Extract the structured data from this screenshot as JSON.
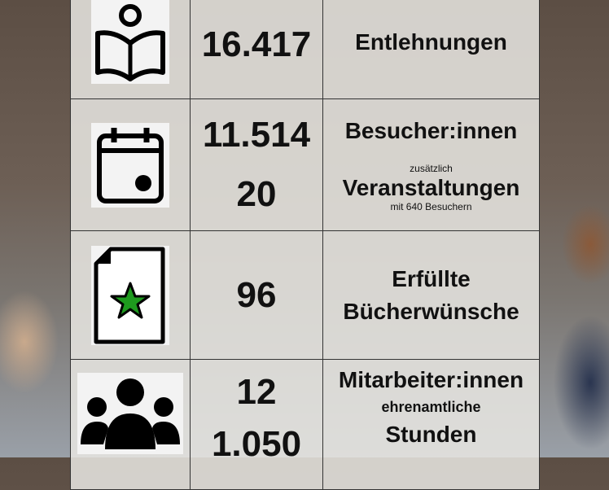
{
  "table": {
    "rows": [
      {
        "numbers": [
          "16.417"
        ],
        "label": [
          "Entlehnungen"
        ]
      },
      {
        "numbers": [
          "11.514",
          "20"
        ],
        "label": [
          "Besucher:innen",
          "zusätzlich",
          "Veranstaltungen",
          "mit 640 Besuchern"
        ]
      },
      {
        "numbers": [
          "96"
        ],
        "label": [
          "Erfüllte",
          "Bücherwünsche"
        ]
      },
      {
        "numbers": [
          "12",
          "1.050"
        ],
        "label": [
          "Mitarbeiter:innen",
          "ehrenamtliche",
          "Stunden"
        ]
      }
    ]
  }
}
